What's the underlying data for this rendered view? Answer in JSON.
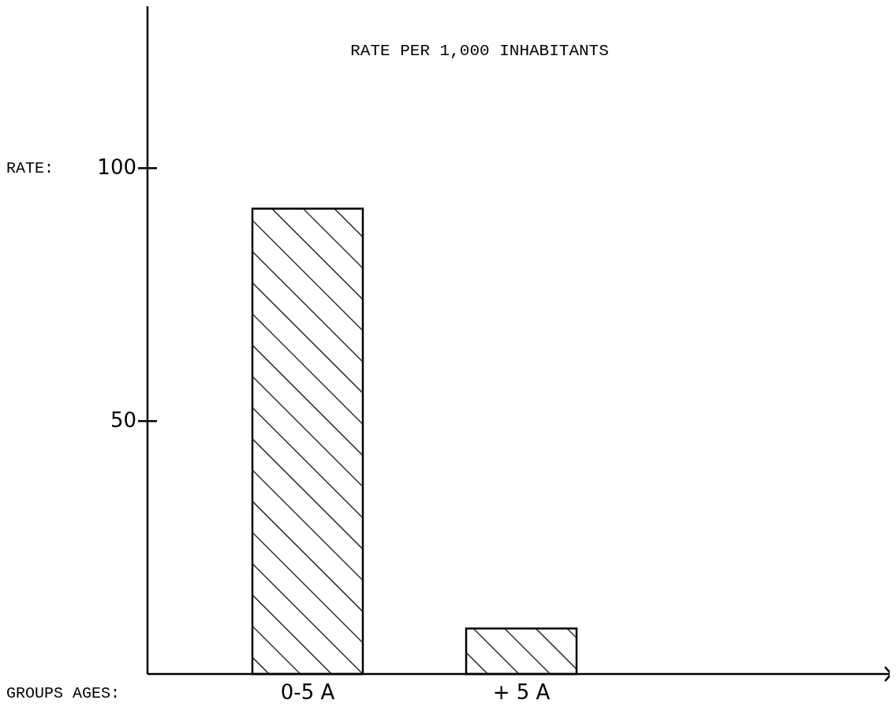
{
  "chart_data": {
    "type": "bar",
    "title": "RATE PER 1,000 INHABITANTS",
    "ylabel": "RATE:",
    "xlabel": "GROUPS AGES:",
    "categories": [
      "0-5 A",
      "+ 5 A"
    ],
    "values": [
      92,
      9
    ],
    "color": "#000000",
    "ylim": [
      0,
      132
    ],
    "yticks": [
      50,
      100
    ],
    "grid": false
  }
}
